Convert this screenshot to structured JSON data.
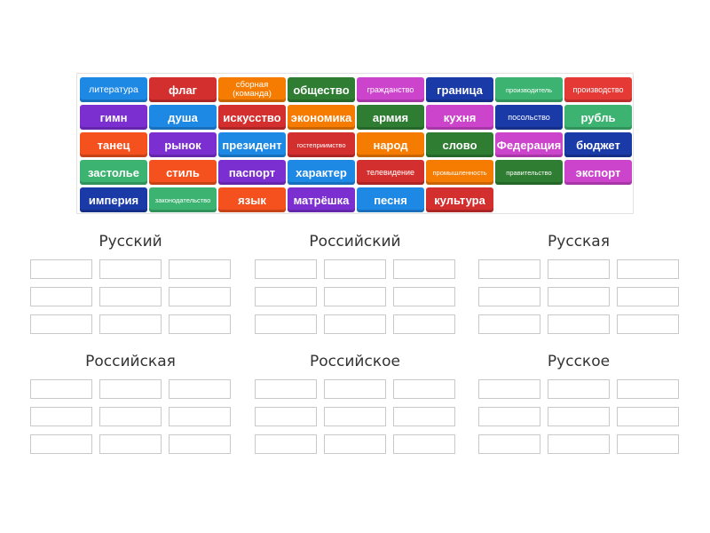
{
  "tiles": [
    {
      "label": "литература",
      "color": "#1e88e5",
      "size": "s10"
    },
    {
      "label": "флаг",
      "color": "#d32f2f",
      "size": ""
    },
    {
      "label": "сборная (команда)",
      "color": "#f57c00",
      "size": "two"
    },
    {
      "label": "общество",
      "color": "#2e7d32",
      "size": ""
    },
    {
      "label": "гражданство",
      "color": "#cc44cc",
      "size": "s9"
    },
    {
      "label": "граница",
      "color": "#1a3aa8",
      "size": ""
    },
    {
      "label": "производитель",
      "color": "#3cb371",
      "size": "s7"
    },
    {
      "label": "производство",
      "color": "#e53935",
      "size": "s9"
    },
    {
      "label": "гимн",
      "color": "#7b2fd0",
      "size": ""
    },
    {
      "label": "душа",
      "color": "#1e88e5",
      "size": ""
    },
    {
      "label": "искусство",
      "color": "#d32f2f",
      "size": ""
    },
    {
      "label": "экономика",
      "color": "#f57c00",
      "size": ""
    },
    {
      "label": "армия",
      "color": "#2e7d32",
      "size": ""
    },
    {
      "label": "кухня",
      "color": "#cc44cc",
      "size": ""
    },
    {
      "label": "посольство",
      "color": "#1a3aa8",
      "size": "s9"
    },
    {
      "label": "рубль",
      "color": "#3cb371",
      "size": ""
    },
    {
      "label": "танец",
      "color": "#f4511e",
      "size": ""
    },
    {
      "label": "рынок",
      "color": "#7b2fd0",
      "size": ""
    },
    {
      "label": "президент",
      "color": "#1e88e5",
      "size": ""
    },
    {
      "label": "гостеприимство",
      "color": "#d32f2f",
      "size": "s7"
    },
    {
      "label": "народ",
      "color": "#f57c00",
      "size": ""
    },
    {
      "label": "слово",
      "color": "#2e7d32",
      "size": ""
    },
    {
      "label": "Федерация",
      "color": "#cc44cc",
      "size": ""
    },
    {
      "label": "бюджет",
      "color": "#1a3aa8",
      "size": ""
    },
    {
      "label": "застолье",
      "color": "#3cb371",
      "size": ""
    },
    {
      "label": "стиль",
      "color": "#f4511e",
      "size": ""
    },
    {
      "label": "паспорт",
      "color": "#7b2fd0",
      "size": ""
    },
    {
      "label": "характер",
      "color": "#1e88e5",
      "size": ""
    },
    {
      "label": "телевидение",
      "color": "#d32f2f",
      "size": "s9"
    },
    {
      "label": "промышленность",
      "color": "#f57c00",
      "size": "s7"
    },
    {
      "label": "правительство",
      "color": "#2e7d32",
      "size": "s7"
    },
    {
      "label": "экспорт",
      "color": "#cc44cc",
      "size": ""
    },
    {
      "label": "империя",
      "color": "#1a3aa8",
      "size": ""
    },
    {
      "label": "законодательство",
      "color": "#3cb371",
      "size": "s7"
    },
    {
      "label": "язык",
      "color": "#f4511e",
      "size": ""
    },
    {
      "label": "матрёшка",
      "color": "#7b2fd0",
      "size": ""
    },
    {
      "label": "песня",
      "color": "#1e88e5",
      "size": ""
    },
    {
      "label": "культура",
      "color": "#d32f2f",
      "size": ""
    }
  ],
  "groups": [
    {
      "title": "Русский"
    },
    {
      "title": "Российский"
    },
    {
      "title": "Русская"
    },
    {
      "title": "Российская"
    },
    {
      "title": "Российское"
    },
    {
      "title": "Русское"
    }
  ],
  "slots_per_group": 9
}
